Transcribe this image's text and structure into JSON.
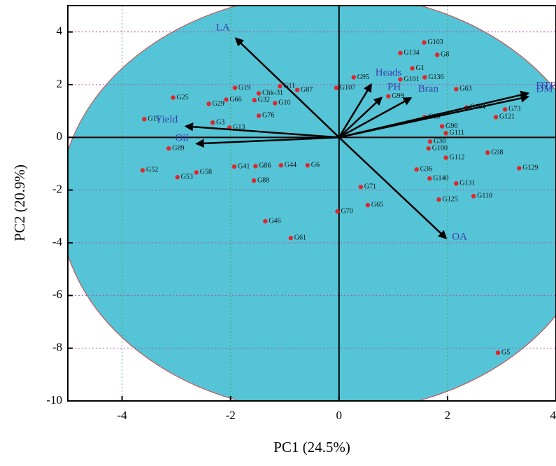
{
  "chart_data": {
    "type": "biplot",
    "x_label": "PC1 (24.5%)",
    "y_label": "PC2 (20.9%)",
    "xlim": [
      -5,
      4
    ],
    "ylim": [
      -10,
      5
    ],
    "xticks": [
      -4,
      -2,
      0,
      2,
      4
    ],
    "yticks": [
      -10,
      -8,
      -6,
      -4,
      -2,
      0,
      2,
      4
    ],
    "grid": true,
    "ellipse_fill": "#55c4d6",
    "point_color": "#e0262a",
    "vector_color": "#000000",
    "vector_label_color": "#3b3bb0",
    "points": {
      "labels": [
        "G103",
        "G134",
        "G8",
        "G1",
        "G101",
        "G136",
        "G63",
        "G95",
        "G107",
        "G99",
        "G104",
        "G73",
        "G121",
        "G69",
        "G96",
        "G111",
        "G100",
        "G112",
        "G98",
        "G129",
        "G36",
        "G140",
        "G131",
        "G125",
        "G110",
        "G71",
        "G65",
        "G70",
        "G46",
        "G61",
        "G5",
        "G25",
        "G15",
        "G19",
        "G11",
        "G87",
        "G66",
        "G29",
        "G32",
        "Chk-31",
        "G10",
        "G76",
        "G3",
        "G13",
        "G89",
        "G52",
        "G53",
        "G58",
        "G41",
        "G86",
        "G44",
        "G6",
        "G88",
        "G30"
      ],
      "x": [
        1.57,
        1.13,
        1.81,
        1.35,
        1.13,
        1.58,
        2.16,
        0.27,
        -0.05,
        0.91,
        2.35,
        3.06,
        2.89,
        1.58,
        1.9,
        1.97,
        1.65,
        1.97,
        2.74,
        3.32,
        1.43,
        1.67,
        2.16,
        1.84,
        2.48,
        0.4,
        0.53,
        -0.03,
        -1.36,
        -0.89,
        2.93,
        -3.06,
        -3.59,
        -1.92,
        -1.09,
        -0.77,
        -2.08,
        -2.4,
        -1.56,
        -1.48,
        -1.18,
        -1.48,
        -2.33,
        -2.02,
        -3.14,
        -3.62,
        -2.98,
        -2.63,
        -1.93,
        -1.54,
        -1.07,
        -0.58,
        -1.57,
        1.68
      ],
      "y": [
        3.6,
        3.2,
        3.13,
        2.62,
        2.2,
        2.28,
        1.83,
        2.28,
        1.88,
        1.56,
        1.14,
        1.06,
        0.77,
        0.77,
        0.42,
        0.16,
        -0.42,
        -0.77,
        -0.58,
        -1.17,
        -1.22,
        -1.56,
        -1.75,
        -2.36,
        -2.23,
        -1.88,
        -2.57,
        -2.81,
        -3.18,
        -3.82,
        -8.17,
        1.51,
        0.69,
        1.88,
        1.94,
        1.8,
        1.43,
        1.27,
        1.41,
        1.67,
        1.3,
        0.82,
        0.56,
        0.37,
        -0.42,
        -1.25,
        -1.51,
        -1.33,
        -1.11,
        -1.09,
        -1.06,
        -1.06,
        -1.64,
        -0.16
      ]
    },
    "vectors": [
      {
        "label": "LA",
        "x": -1.9,
        "y": 3.75
      },
      {
        "label": "Yield",
        "x": -2.82,
        "y": 0.42
      },
      {
        "label": "Oil",
        "x": -2.62,
        "y": -0.24
      },
      {
        "label": "Heads",
        "x": 0.59,
        "y": 2.0
      },
      {
        "label": "PH",
        "x": 0.78,
        "y": 1.5
      },
      {
        "label": "Bran",
        "x": 1.32,
        "y": 1.49
      },
      {
        "label": "DTF",
        "x": 3.48,
        "y": 1.67
      },
      {
        "label": "DMT",
        "x": 3.48,
        "y": 1.54
      },
      {
        "label": "OA",
        "x": 1.97,
        "y": -3.82
      }
    ]
  }
}
